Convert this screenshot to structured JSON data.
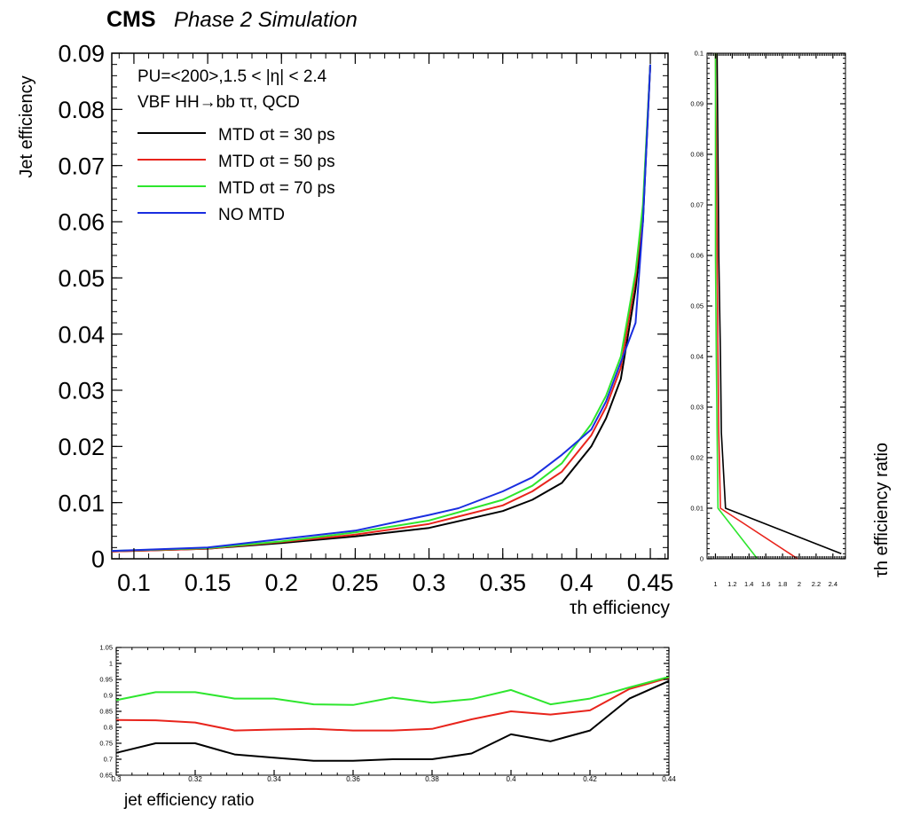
{
  "header": {
    "experiment": "CMS",
    "subtitle": "Phase 2 Simulation"
  },
  "legend": {
    "condition_line": "PU=<200>,1.5 < |η| < 2.4",
    "process_line": "VBF HH→bb ττ, QCD",
    "entries": [
      "MTD σt = 30 ps",
      "MTD σt = 50 ps",
      "MTD σt = 70 ps",
      "NO MTD"
    ]
  },
  "colors": {
    "mtd30": "#000000",
    "mtd50": "#e8241c",
    "mtd70": "#2ee62e",
    "nomtd": "#1a2ee0"
  },
  "chart_data": [
    {
      "id": "main",
      "type": "line",
      "xlabel": "τh efficiency",
      "ylabel": "Jet efficiency",
      "xlim": [
        0.085,
        0.462
      ],
      "ylim": [
        0,
        0.09
      ],
      "xticks": [
        "0.1",
        "0.15",
        "0.2",
        "0.25",
        "0.3",
        "0.35",
        "0.4",
        "0.45"
      ],
      "yticks": [
        "0",
        "0.01",
        "0.02",
        "0.03",
        "0.04",
        "0.05",
        "0.06",
        "0.07",
        "0.08",
        "0.09"
      ],
      "series": [
        {
          "name": "MTD σt = 30 ps",
          "color": "#000000",
          "x": [
            0.085,
            0.15,
            0.2,
            0.25,
            0.3,
            0.35,
            0.37,
            0.39,
            0.41,
            0.42,
            0.43,
            0.44,
            0.445,
            0.45
          ],
          "y": [
            0.0013,
            0.0018,
            0.0028,
            0.004,
            0.0055,
            0.0085,
            0.0105,
            0.0135,
            0.02,
            0.025,
            0.032,
            0.048,
            0.06,
            0.088
          ]
        },
        {
          "name": "MTD σt = 50 ps",
          "color": "#e8241c",
          "x": [
            0.085,
            0.15,
            0.2,
            0.25,
            0.3,
            0.35,
            0.37,
            0.39,
            0.41,
            0.42,
            0.43,
            0.44,
            0.445,
            0.45
          ],
          "y": [
            0.0013,
            0.0018,
            0.003,
            0.0043,
            0.0062,
            0.0095,
            0.012,
            0.0155,
            0.022,
            0.027,
            0.034,
            0.05,
            0.062,
            0.088
          ]
        },
        {
          "name": "MTD σt = 70 ps",
          "color": "#2ee62e",
          "x": [
            0.085,
            0.15,
            0.2,
            0.25,
            0.3,
            0.35,
            0.37,
            0.39,
            0.41,
            0.42,
            0.43,
            0.44,
            0.445,
            0.45
          ],
          "y": [
            0.0014,
            0.0019,
            0.0031,
            0.0047,
            0.0068,
            0.0105,
            0.013,
            0.017,
            0.024,
            0.029,
            0.036,
            0.051,
            0.063,
            0.088
          ]
        },
        {
          "name": "NO MTD",
          "color": "#1a2ee0",
          "x": [
            0.085,
            0.15,
            0.2,
            0.25,
            0.3,
            0.32,
            0.35,
            0.37,
            0.39,
            0.41,
            0.42,
            0.43,
            0.44,
            0.445,
            0.45
          ],
          "y": [
            0.0014,
            0.002,
            0.0035,
            0.005,
            0.0078,
            0.009,
            0.012,
            0.0145,
            0.0185,
            0.023,
            0.028,
            0.035,
            0.042,
            0.06,
            0.088
          ]
        }
      ]
    },
    {
      "id": "tau_ratio",
      "type": "line",
      "xlabel": "τh efficiency ratio",
      "xlim": [
        0.9,
        2.55
      ],
      "ylim": [
        0,
        0.1
      ],
      "xticks": [
        "1",
        "1.2",
        "1.4",
        "1.6",
        "1.8",
        "2",
        "2.2",
        "2.4"
      ],
      "yticks": [
        "0",
        "0.01",
        "0.02",
        "0.03",
        "0.04",
        "0.05",
        "0.06",
        "0.07",
        "0.08",
        "0.09",
        "0.1"
      ],
      "series": [
        {
          "color": "#000000",
          "x": [
            2.5,
            1.12,
            1.07,
            1.06,
            1.04,
            1.03,
            1.02
          ],
          "y": [
            0.001,
            0.01,
            0.025,
            0.04,
            0.06,
            0.08,
            0.1
          ]
        },
        {
          "color": "#e8241c",
          "x": [
            1.98,
            1.06,
            1.04,
            1.03,
            1.02,
            1.01,
            1.0
          ],
          "y": [
            0.0,
            0.01,
            0.025,
            0.04,
            0.06,
            0.08,
            0.1
          ]
        },
        {
          "color": "#2ee62e",
          "x": [
            1.5,
            1.03,
            1.02,
            1.01,
            1.0,
            1.0,
            1.0
          ],
          "y": [
            0.0,
            0.01,
            0.025,
            0.04,
            0.06,
            0.08,
            0.1
          ]
        }
      ]
    },
    {
      "id": "jet_ratio",
      "type": "line",
      "xlabel": "jet efficiency ratio",
      "xlim": [
        0.3,
        0.44
      ],
      "ylim": [
        0.65,
        1.05
      ],
      "xticks": [
        "0.3",
        "0.32",
        "0.34",
        "0.36",
        "0.38",
        "0.4",
        "0.42",
        "0.44"
      ],
      "yticks": [
        "0.65",
        "0.7",
        "0.75",
        "0.8",
        "0.85",
        "0.9",
        "0.95",
        "1",
        "1.05"
      ],
      "series": [
        {
          "color": "#000000",
          "x": [
            0.3,
            0.31,
            0.32,
            0.33,
            0.34,
            0.35,
            0.36,
            0.37,
            0.38,
            0.39,
            0.4,
            0.41,
            0.42,
            0.43,
            0.44
          ],
          "y": [
            0.72,
            0.75,
            0.75,
            0.715,
            0.705,
            0.695,
            0.695,
            0.7,
            0.7,
            0.718,
            0.778,
            0.756,
            0.79,
            0.89,
            0.945
          ]
        },
        {
          "color": "#e8241c",
          "x": [
            0.3,
            0.31,
            0.32,
            0.33,
            0.34,
            0.35,
            0.36,
            0.37,
            0.38,
            0.39,
            0.4,
            0.41,
            0.42,
            0.43,
            0.44
          ],
          "y": [
            0.823,
            0.822,
            0.815,
            0.79,
            0.793,
            0.795,
            0.79,
            0.79,
            0.795,
            0.825,
            0.85,
            0.84,
            0.853,
            0.92,
            0.955
          ]
        },
        {
          "color": "#2ee62e",
          "x": [
            0.3,
            0.31,
            0.32,
            0.33,
            0.34,
            0.35,
            0.36,
            0.37,
            0.38,
            0.39,
            0.4,
            0.41,
            0.42,
            0.43,
            0.44
          ],
          "y": [
            0.885,
            0.91,
            0.91,
            0.89,
            0.89,
            0.872,
            0.87,
            0.893,
            0.877,
            0.888,
            0.917,
            0.872,
            0.89,
            0.925,
            0.958
          ]
        }
      ]
    }
  ]
}
